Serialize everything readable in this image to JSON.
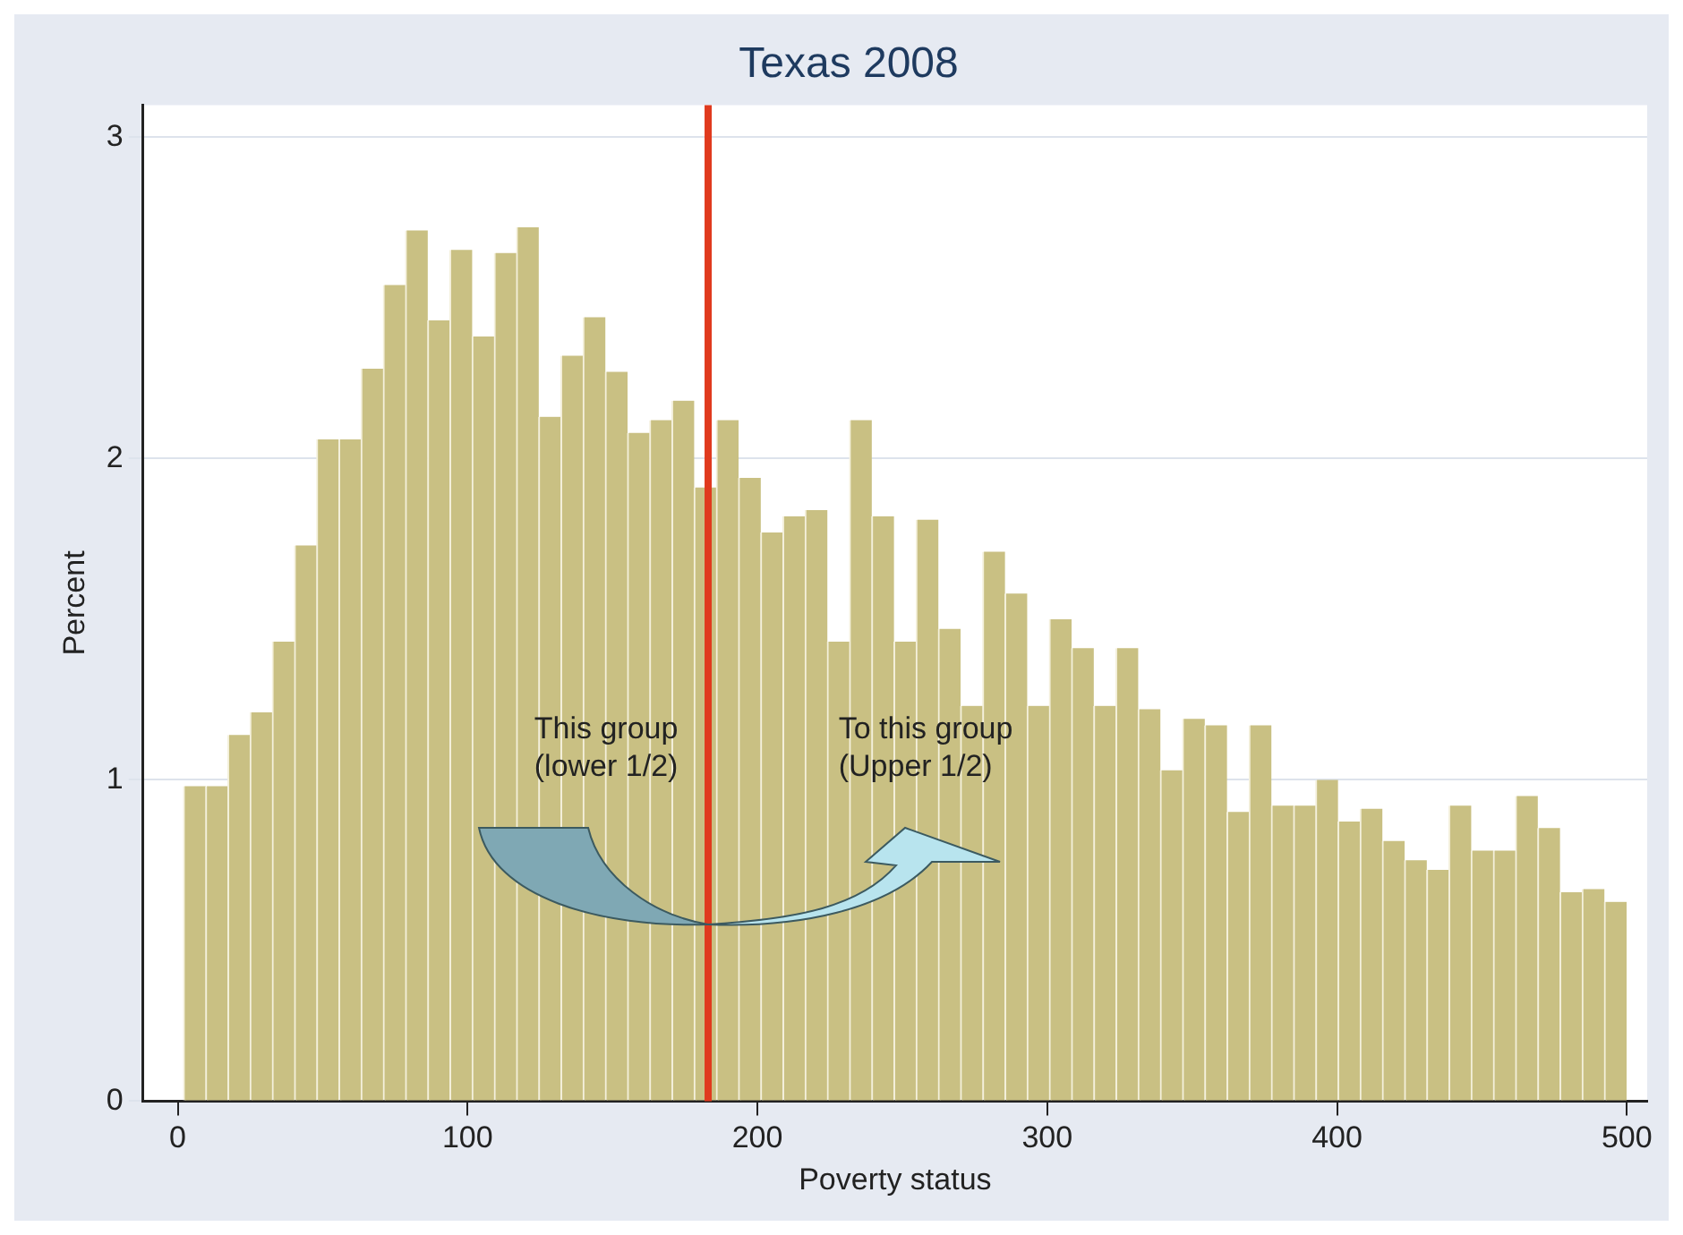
{
  "chart_data": {
    "type": "histogram",
    "title": "Texas 2008",
    "xlabel": "Poverty status",
    "ylabel": "Percent",
    "bins": [
      2,
      9.66,
      17.32,
      24.98,
      32.64,
      40.3,
      47.96,
      55.62,
      63.28,
      70.94,
      78.6,
      86.26,
      93.92,
      101.58,
      109.24,
      116.9,
      124.56,
      132.22,
      139.88,
      147.54,
      155.2,
      162.86,
      170.52,
      178.18,
      185.84,
      193.5,
      201.16,
      208.82,
      216.48,
      224.14,
      231.8,
      239.46,
      247.12,
      254.78,
      262.44,
      270.1,
      277.76,
      285.42,
      293.08,
      300.74,
      308.4,
      316.06,
      323.72,
      331.38,
      339.04,
      346.7,
      354.36,
      362.02,
      369.68,
      377.34,
      385,
      392.66,
      400.32,
      407.98,
      415.64,
      423.3,
      430.96,
      438.62,
      446.28,
      453.94,
      461.6,
      469.26,
      476.92,
      484.58,
      492.24,
      499.9
    ],
    "values": [
      0.98,
      0.98,
      1.14,
      1.21,
      1.43,
      1.73,
      2.06,
      2.06,
      2.28,
      2.54,
      2.71,
      2.43,
      2.65,
      2.38,
      2.64,
      2.72,
      2.13,
      2.32,
      2.44,
      2.27,
      2.08,
      2.12,
      2.18,
      1.91,
      2.12,
      1.94,
      1.77,
      1.82,
      1.84,
      1.43,
      2.12,
      1.82,
      1.43,
      1.81,
      1.47,
      1.23,
      1.71,
      1.58,
      1.23,
      1.5,
      1.41,
      1.23,
      1.41,
      1.22,
      1.03,
      1.19,
      1.17,
      0.9,
      1.17,
      0.92,
      0.92,
      1.0,
      0.87,
      0.91,
      0.81,
      0.75,
      0.72,
      0.92,
      0.78,
      0.78,
      0.95,
      0.85,
      0.65,
      0.66,
      0.62
    ],
    "color": "#c9c083",
    "xlim": [
      -12,
      507
    ],
    "xticks": [
      0,
      100,
      200,
      300,
      400,
      500
    ],
    "ylim": [
      0,
      3.1
    ],
    "yticks": [
      0,
      1,
      2,
      3
    ],
    "grid": "y",
    "ref_lines": [
      {
        "axis": "x",
        "value": 183,
        "color": "#e03a1e"
      }
    ],
    "annotations": [
      "This group\n(lower 1/2)",
      "To this group\n(Upper 1/2)"
    ]
  }
}
